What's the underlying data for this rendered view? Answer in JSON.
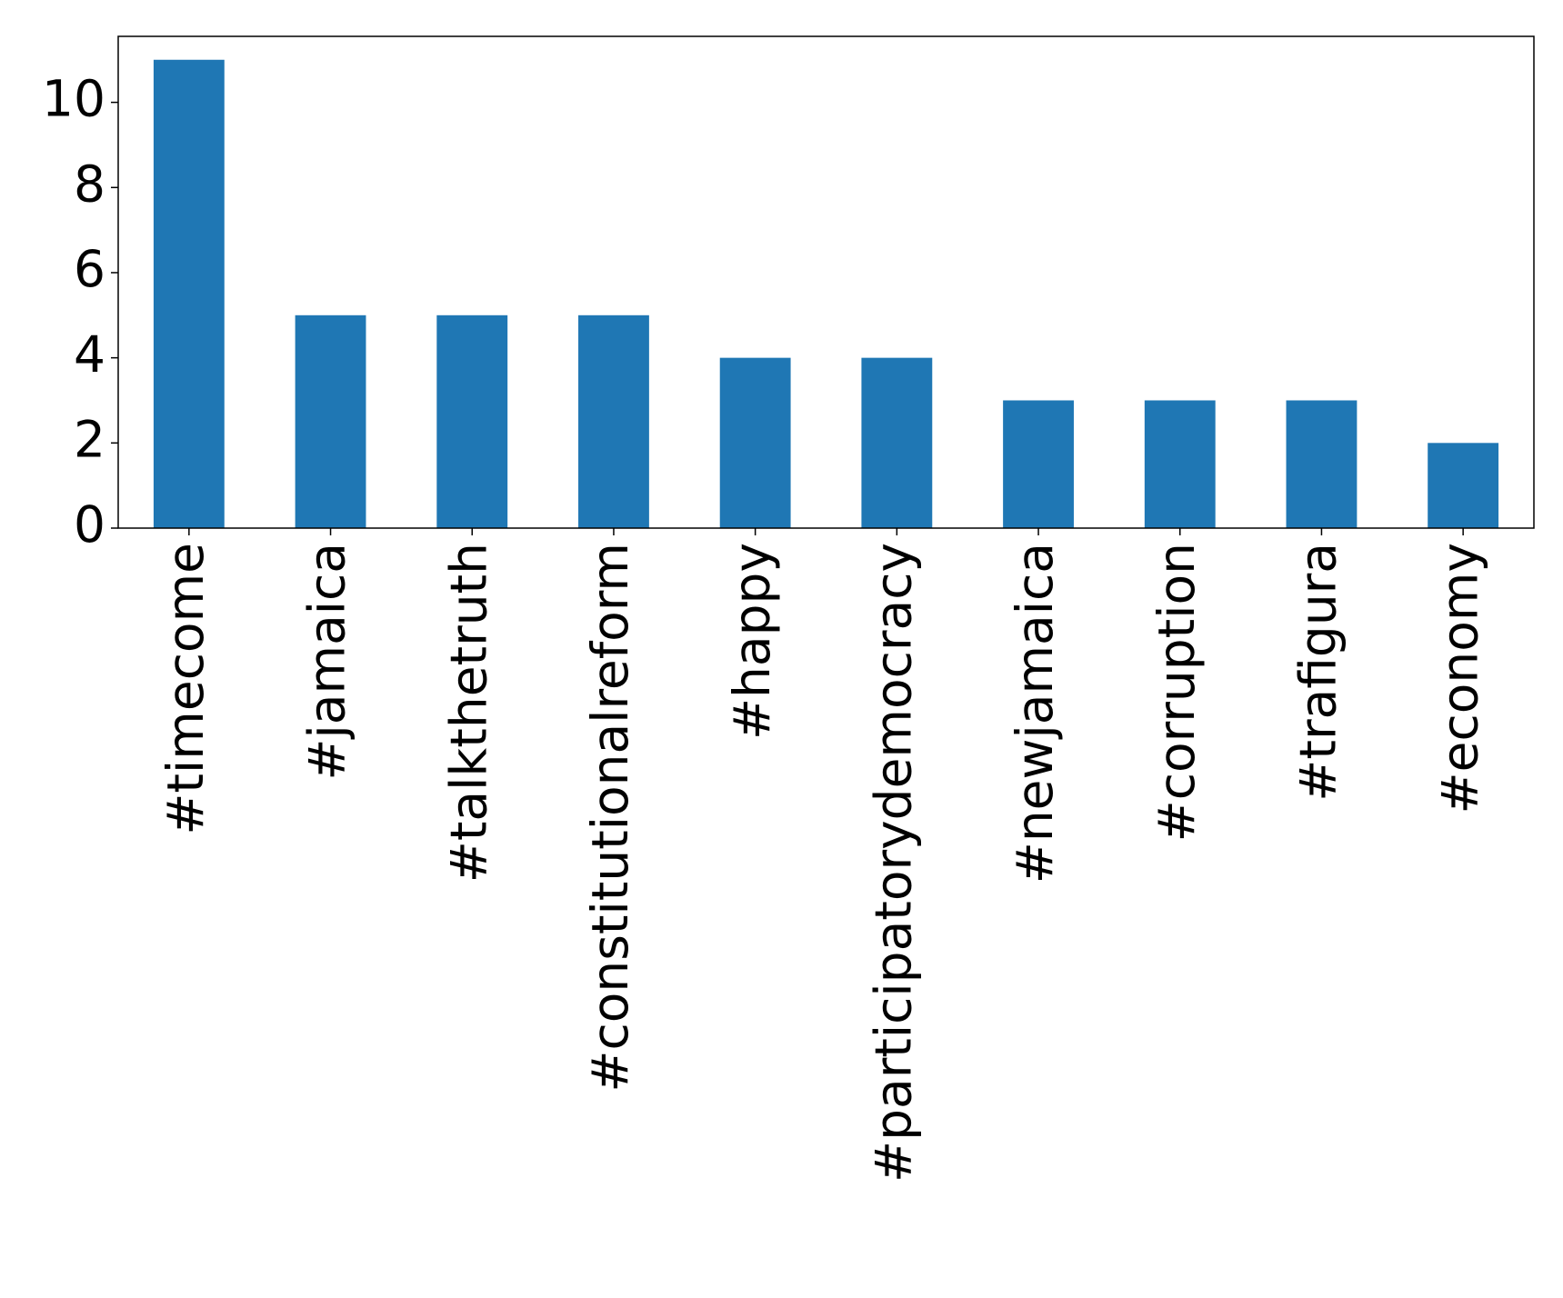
{
  "chart_data": {
    "type": "bar",
    "categories": [
      "#timecome",
      "#jamaica",
      "#talkthetruth",
      "#constitutionalreform",
      "#happy",
      "#participatorydemocracy",
      "#newjamaica",
      "#corruption",
      "#trafigura",
      "#economy"
    ],
    "values": [
      11,
      5,
      5,
      5,
      4,
      4,
      3,
      3,
      3,
      2
    ],
    "color": "#1f77b4",
    "ylim": [
      0,
      11.55
    ],
    "yticks": [
      0,
      2,
      4,
      6,
      8,
      10
    ],
    "grid": false
  }
}
